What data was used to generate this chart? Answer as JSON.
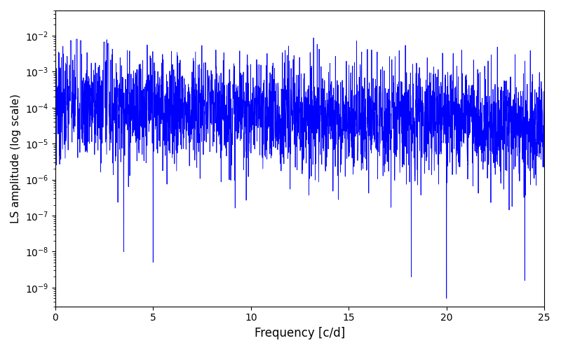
{
  "title": "",
  "xlabel": "Frequency [c/d]",
  "ylabel": "LS amplitude (log scale)",
  "line_color": "#0000ff",
  "line_width": 0.6,
  "xlim": [
    0,
    25
  ],
  "ylim": [
    3e-10,
    0.05
  ],
  "freq_min": 0.0,
  "freq_max": 25.0,
  "n_points": 3000,
  "background_color": "#ffffff",
  "seed": 7
}
